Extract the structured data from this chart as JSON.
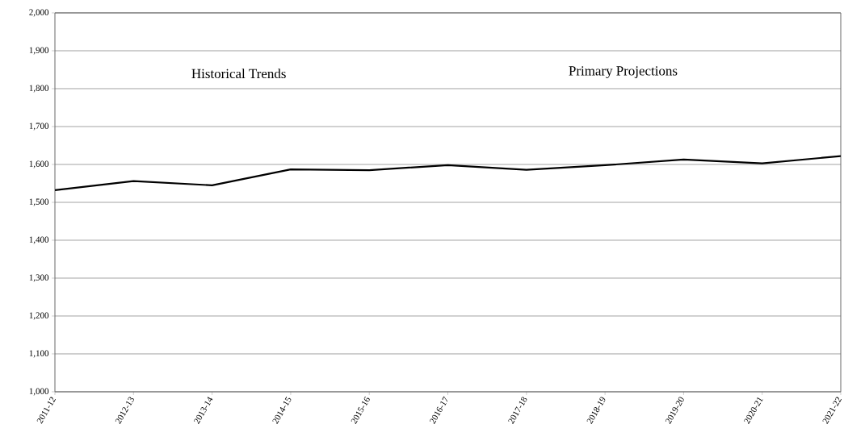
{
  "chart_data": {
    "type": "line",
    "categories": [
      "2011-12",
      "2012-13",
      "2013-14",
      "2014-15",
      "2015-16",
      "2016-17",
      "2017-18",
      "2018-19",
      "2019-20",
      "2020-21",
      "2021-22"
    ],
    "series": [
      {
        "color": "#000000",
        "values": [
          1532,
          1556,
          1545,
          1587,
          1585,
          1598,
          1586,
          1598,
          1613,
          1603,
          1622
        ]
      }
    ],
    "ylim": [
      1000,
      2000
    ],
    "yticks": [
      {
        "value": 1000,
        "label": "1,000"
      },
      {
        "value": 1100,
        "label": "1,100"
      },
      {
        "value": 1200,
        "label": "1,200"
      },
      {
        "value": 1300,
        "label": "1,300"
      },
      {
        "value": 1400,
        "label": "1,400"
      },
      {
        "value": 1500,
        "label": "1,500"
      },
      {
        "value": 1600,
        "label": "1,600"
      },
      {
        "value": 1700,
        "label": "1,700"
      },
      {
        "value": 1800,
        "label": "1,800"
      },
      {
        "value": 1900,
        "label": "1,900"
      },
      {
        "value": 2000,
        "label": "2,000"
      }
    ],
    "grid": "y",
    "marker": "none",
    "line_style": "solid",
    "annotations": [
      "Historical Trends",
      "Primary Projections"
    ]
  }
}
